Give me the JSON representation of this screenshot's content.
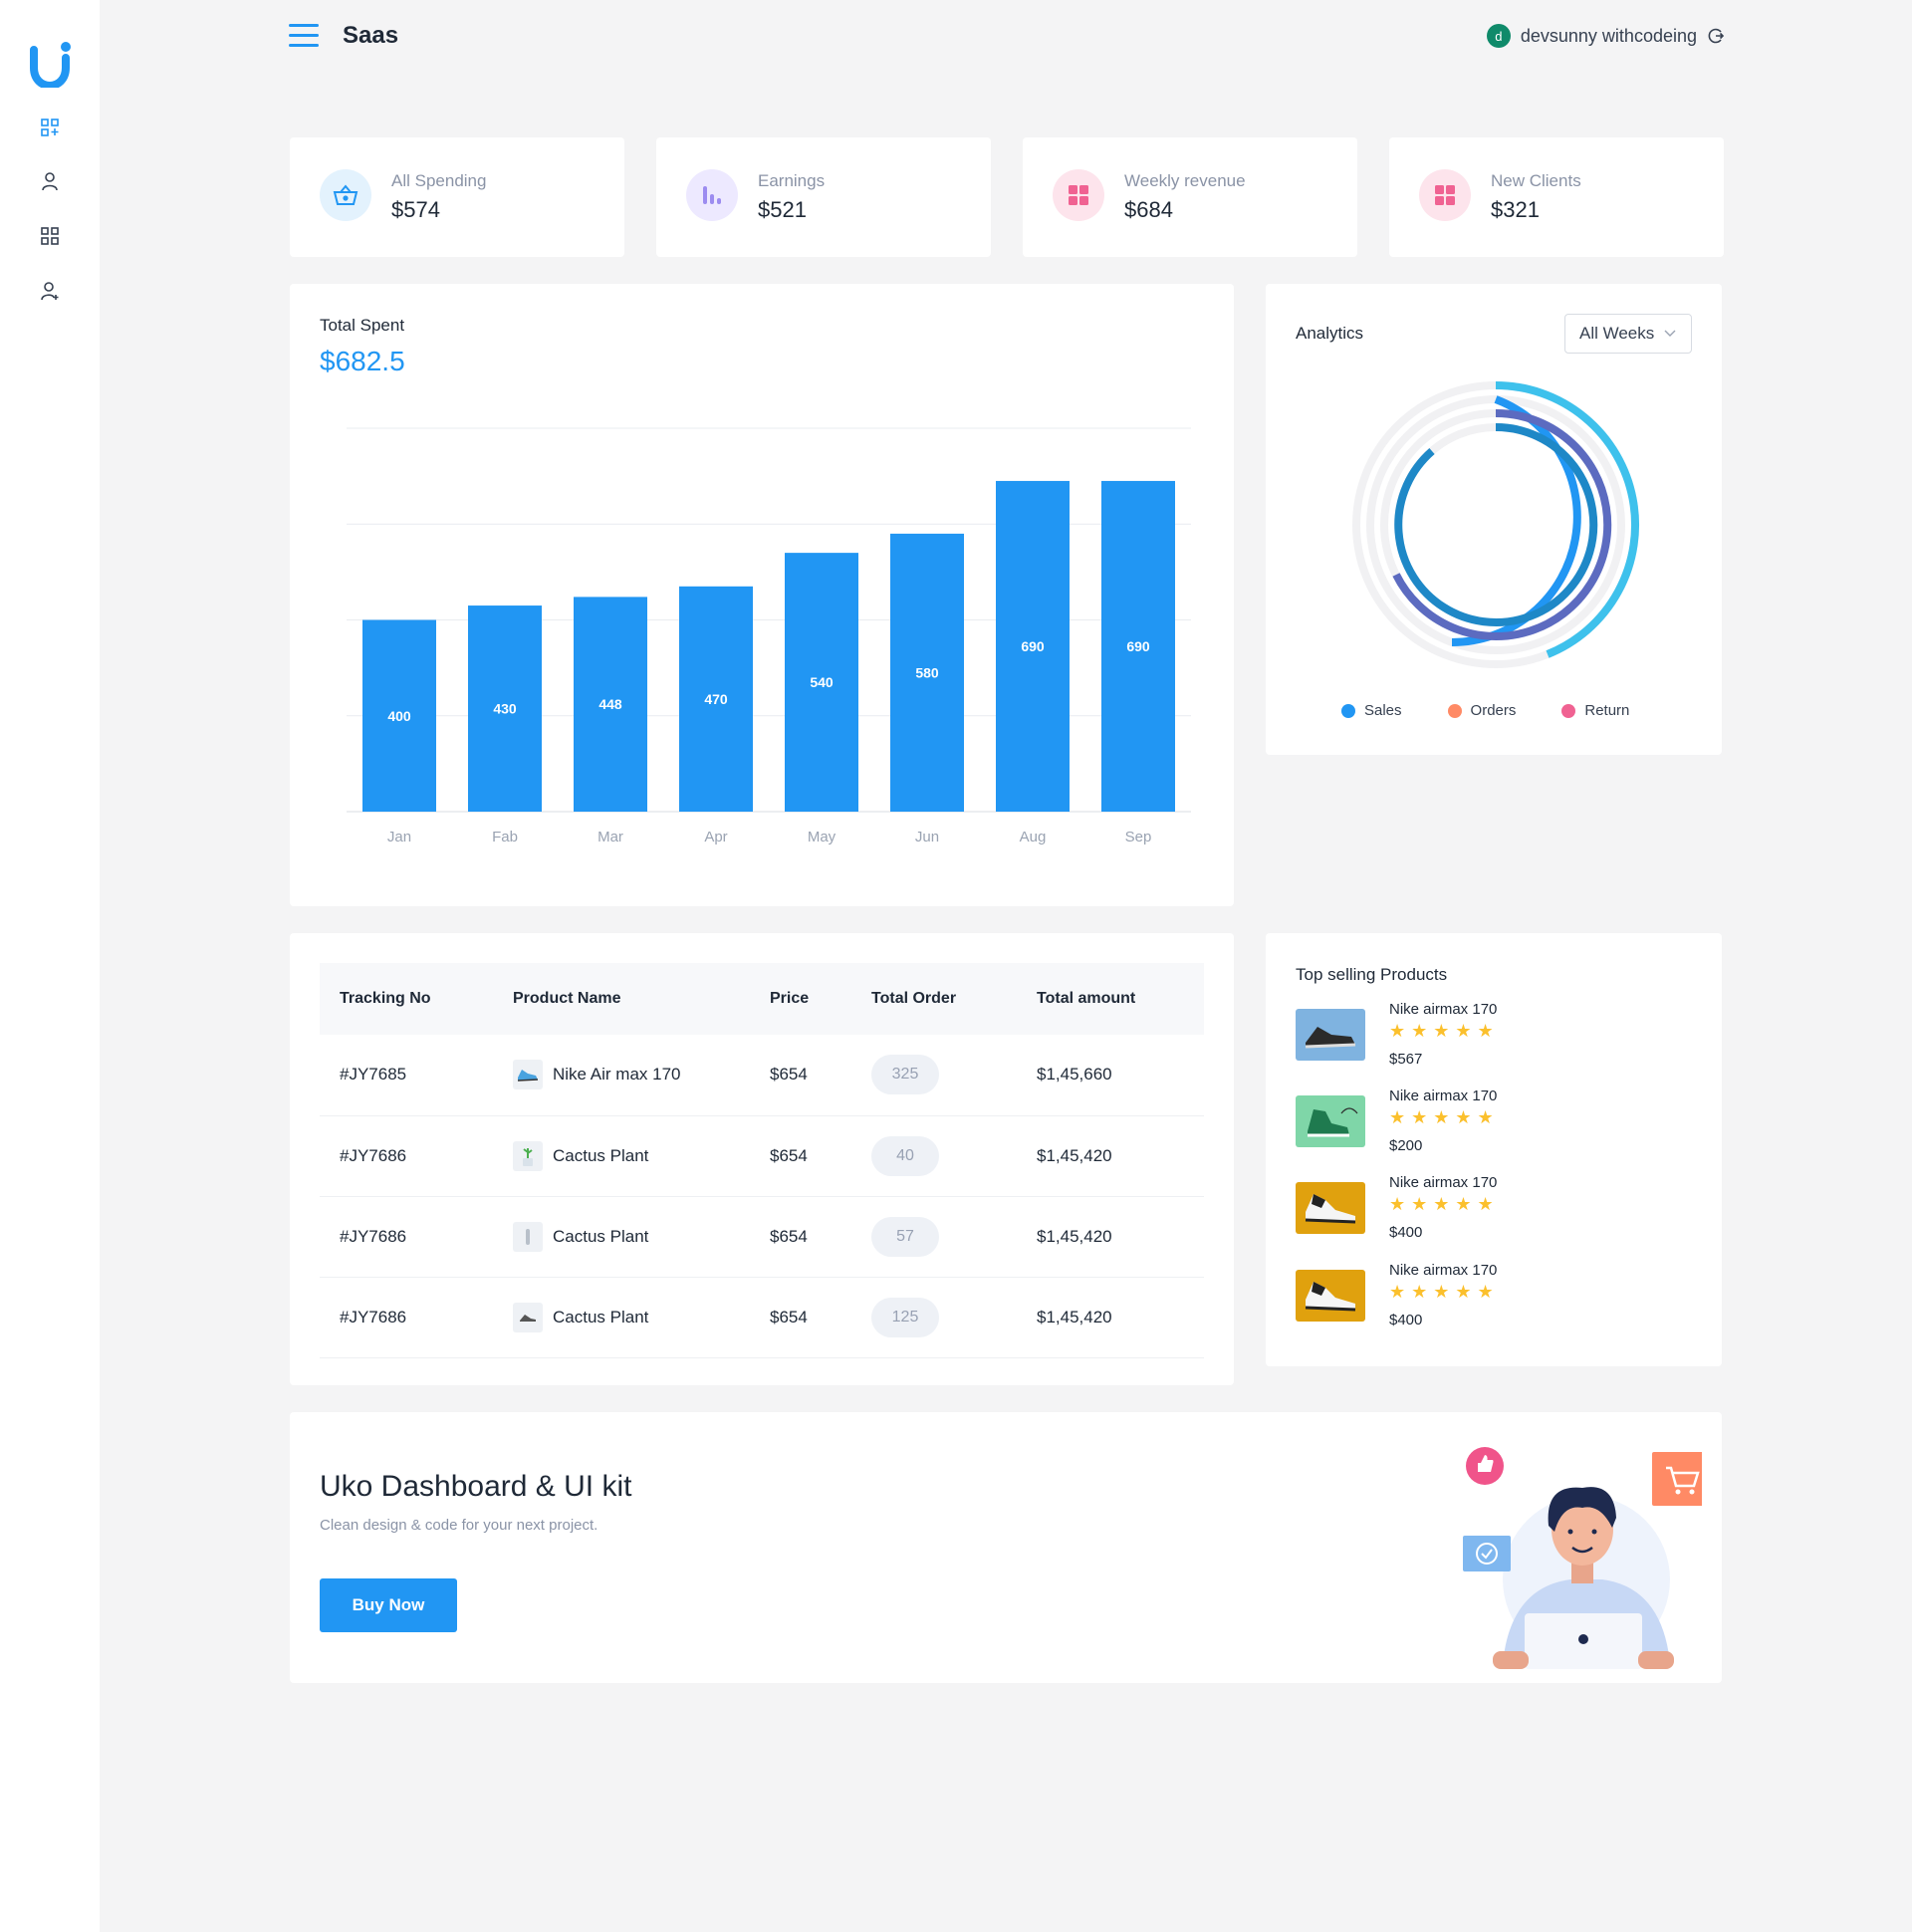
{
  "header": {
    "title": "Saas",
    "user_initial": "d",
    "user_name": "devsunny withcodeing"
  },
  "stats": [
    {
      "label": "All Spending",
      "value": "$574",
      "icon": "basket-icon",
      "color": "#2196f3",
      "bg": "#e3f2fd"
    },
    {
      "label": "Earnings",
      "value": "$521",
      "icon": "bar-chart-icon",
      "color": "#9c8cf0",
      "bg": "#ede9ff"
    },
    {
      "label": "Weekly revenue",
      "value": "$684",
      "icon": "grid-icon",
      "color": "#f06292",
      "bg": "#fde4ec"
    },
    {
      "label": "New Clients",
      "value": "$321",
      "icon": "grid-icon",
      "color": "#f06292",
      "bg": "#fde4ec"
    }
  ],
  "total_spent": {
    "title": "Total Spent",
    "value": "$682.5"
  },
  "chart_data": {
    "type": "bar",
    "categories": [
      "Jan",
      "Fab",
      "Mar",
      "Apr",
      "May",
      "Jun",
      "Aug",
      "Sep"
    ],
    "values": [
      400,
      430,
      448,
      470,
      540,
      580,
      690,
      690
    ],
    "title": "Total Spent",
    "ylim": [
      0,
      800
    ],
    "grid": true,
    "color": "#2196f3"
  },
  "analytics": {
    "title": "Analytics",
    "filter": "All Weeks",
    "legend": [
      {
        "name": "Sales",
        "color": "#2196f3"
      },
      {
        "name": "Orders",
        "color": "#ff8a65"
      },
      {
        "name": "Return",
        "color": "#f06292"
      }
    ]
  },
  "orders": {
    "headers": [
      "Tracking No",
      "Product Name",
      "Price",
      "Total Order",
      "Total amount"
    ],
    "rows": [
      {
        "tracking": "#JY7685",
        "product": "Nike Air max 170",
        "thumb": "shoe-icon",
        "price": "$654",
        "total_order": "325",
        "amount": "$1,45,660"
      },
      {
        "tracking": "#JY7686",
        "product": "Cactus Plant",
        "thumb": "plant-icon",
        "price": "$654",
        "total_order": "40",
        "amount": "$1,45,420"
      },
      {
        "tracking": "#JY7686",
        "product": "Cactus Plant",
        "thumb": "bottle-icon",
        "price": "$654",
        "total_order": "57",
        "amount": "$1,45,420"
      },
      {
        "tracking": "#JY7686",
        "product": "Cactus Plant",
        "thumb": "shoe-icon",
        "price": "$654",
        "total_order": "125",
        "amount": "$1,45,420"
      }
    ]
  },
  "top_selling": {
    "title": "Top selling Products",
    "items": [
      {
        "name": "Nike airmax 170",
        "stars": "★★★★★",
        "price": "$567",
        "bg": "#7fb3e0"
      },
      {
        "name": "Nike airmax 170",
        "stars": "★★★★★",
        "price": "$200",
        "bg": "#7fd6a8"
      },
      {
        "name": "Nike airmax 170",
        "stars": "★★★★★",
        "price": "$400",
        "bg": "#e0a10e"
      },
      {
        "name": "Nike airmax 170",
        "stars": "★★★★★",
        "price": "$400",
        "bg": "#e0a10e"
      }
    ]
  },
  "promo": {
    "title": "Uko Dashboard & UI kit",
    "subtitle": "Clean design & code for your next project.",
    "button": "Buy Now"
  }
}
